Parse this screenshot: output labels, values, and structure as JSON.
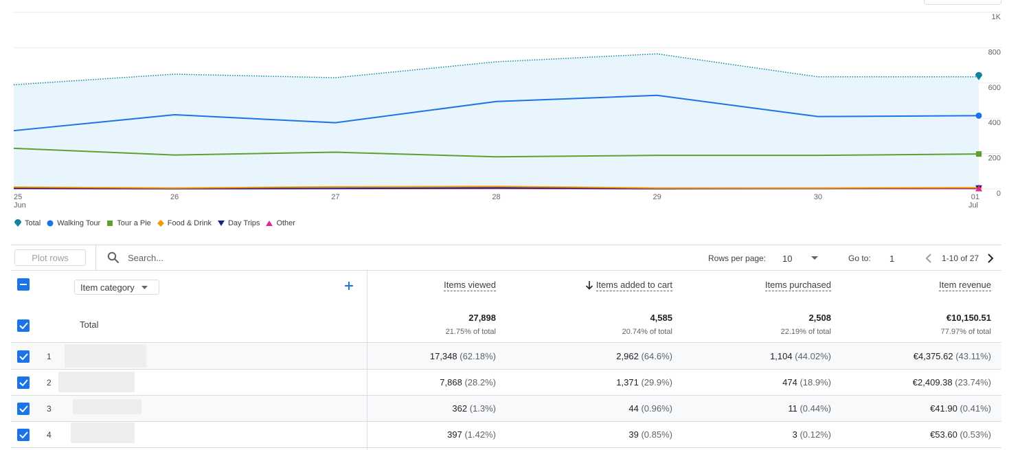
{
  "chart_data": {
    "type": "line",
    "x": [
      "25 Jun",
      "26",
      "27",
      "28",
      "29",
      "30",
      "01 Jul"
    ],
    "x_tick_labels": [
      {
        "day": "25",
        "month": "Jun"
      },
      {
        "day": "26",
        "month": ""
      },
      {
        "day": "27",
        "month": ""
      },
      {
        "day": "28",
        "month": ""
      },
      {
        "day": "29",
        "month": ""
      },
      {
        "day": "30",
        "month": ""
      },
      {
        "day": "01",
        "month": "Jul"
      }
    ],
    "y_ticks": [
      "0",
      "200",
      "400",
      "600",
      "800",
      "1K"
    ],
    "ylim": [
      0,
      1000
    ],
    "grid": true,
    "legend_position": "bottom-left",
    "series": [
      {
        "name": "Total",
        "color": "#12839e",
        "style": "dotted-area",
        "marker": "pin",
        "values": [
          590,
          650,
          630,
          720,
          765,
          635,
          635
        ]
      },
      {
        "name": "Walking Tour",
        "color": "#1a73e8",
        "style": "solid",
        "marker": "circle",
        "values": [
          330,
          420,
          375,
          495,
          530,
          410,
          415
        ]
      },
      {
        "name": "Tour a Pie",
        "color": "#5f9e2f",
        "style": "solid",
        "marker": "square",
        "values": [
          230,
          192,
          208,
          182,
          190,
          190,
          198
        ]
      },
      {
        "name": "Food & Drink",
        "color": "#f29900",
        "style": "solid",
        "marker": "diamond",
        "values": [
          10,
          5,
          12,
          14,
          5,
          5,
          7
        ]
      },
      {
        "name": "Day Trips",
        "color": "#1a237e",
        "style": "solid",
        "marker": "triangle-down",
        "values": [
          4,
          2,
          3,
          6,
          2,
          3,
          5
        ]
      },
      {
        "name": "Other",
        "color": "#e52592",
        "style": "solid",
        "marker": "triangle-up",
        "values": [
          2,
          1,
          2,
          3,
          1,
          2,
          2
        ]
      }
    ]
  },
  "toolbar": {
    "plot_rows_label": "Plot rows",
    "search_placeholder": "Search...",
    "rows_per_page_label": "Rows per page:",
    "rows_per_page_value": "10",
    "go_to_label": "Go to:",
    "go_to_value": "1",
    "pagination_text": "1-10 of 27"
  },
  "table": {
    "dimension_select": "Item category",
    "total_label": "Total",
    "columns": [
      {
        "label": "Items viewed",
        "sorted": false,
        "total": "27,898",
        "total_pct": "21.75% of total"
      },
      {
        "label": "Items added to cart",
        "sorted": true,
        "total": "4,585",
        "total_pct": "20.74% of total"
      },
      {
        "label": "Items purchased",
        "sorted": false,
        "total": "2,508",
        "total_pct": "22.19% of total"
      },
      {
        "label": "Item revenue",
        "sorted": false,
        "total": "€10,150.51",
        "total_pct": "77.97% of total"
      }
    ],
    "rows": [
      {
        "num": "1",
        "cells": [
          {
            "v": "17,348",
            "p": "(62.18%)"
          },
          {
            "v": "2,962",
            "p": "(64.6%)"
          },
          {
            "v": "1,104",
            "p": "(44.02%)"
          },
          {
            "v": "€4,375.62",
            "p": "(43.11%)"
          }
        ]
      },
      {
        "num": "2",
        "cells": [
          {
            "v": "7,868",
            "p": "(28.2%)"
          },
          {
            "v": "1,371",
            "p": "(29.9%)"
          },
          {
            "v": "474",
            "p": "(18.9%)"
          },
          {
            "v": "€2,409.38",
            "p": "(23.74%)"
          }
        ]
      },
      {
        "num": "3",
        "cells": [
          {
            "v": "362",
            "p": "(1.3%)"
          },
          {
            "v": "44",
            "p": "(0.96%)"
          },
          {
            "v": "11",
            "p": "(0.44%)"
          },
          {
            "v": "€41.90",
            "p": "(0.41%)"
          }
        ]
      },
      {
        "num": "4",
        "cells": [
          {
            "v": "397",
            "p": "(1.42%)"
          },
          {
            "v": "39",
            "p": "(0.85%)"
          },
          {
            "v": "3",
            "p": "(0.12%)"
          },
          {
            "v": "€53.60",
            "p": "(0.53%)"
          }
        ]
      }
    ]
  },
  "colors": {
    "accent": "#1a73e8",
    "area_fill": "#e8f5fd",
    "border": "#dadce0"
  }
}
